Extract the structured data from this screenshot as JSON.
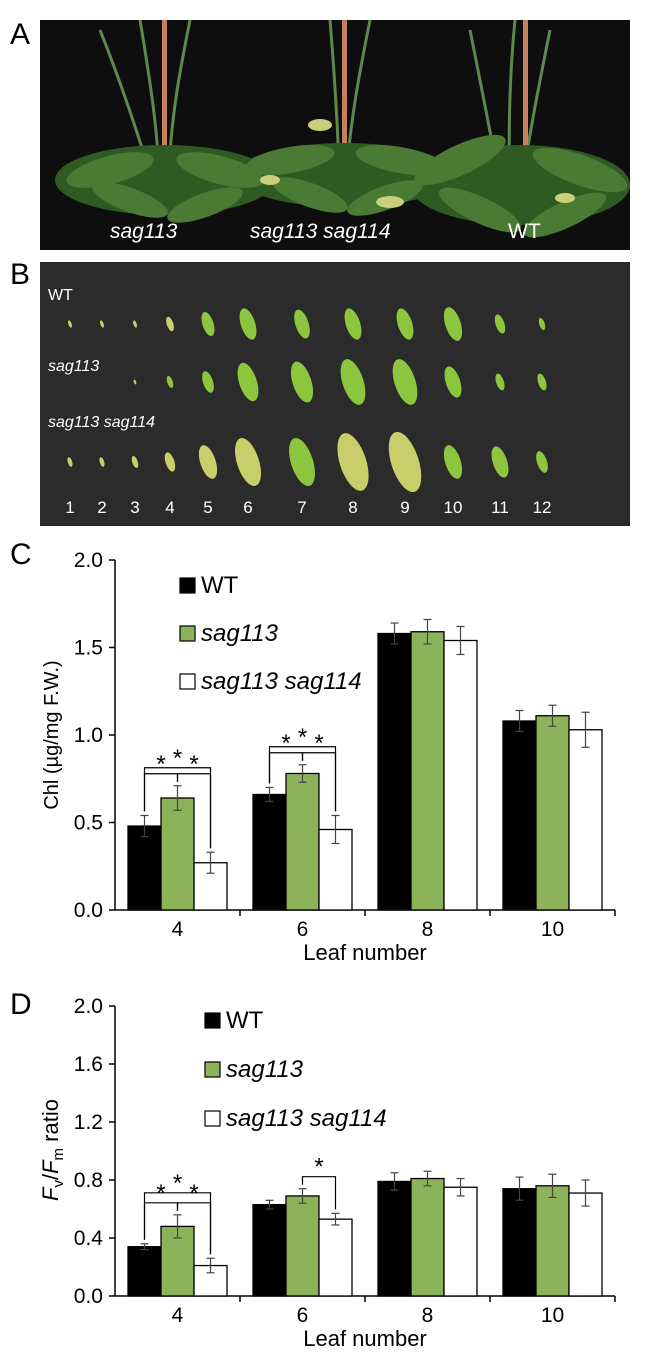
{
  "panels": {
    "A": {
      "letter": "A",
      "labels": [
        "sag113",
        "sag113 sag114",
        "WT"
      ]
    },
    "B": {
      "letter": "B",
      "row_labels": [
        "WT",
        "sag113",
        "sag113 sag114"
      ],
      "leaf_numbers": [
        "1",
        "2",
        "3",
        "4",
        "5",
        "6",
        "7",
        "8",
        "9",
        "10",
        "11",
        "12"
      ]
    },
    "C": {
      "letter": "C"
    },
    "D": {
      "letter": "D"
    }
  },
  "colors": {
    "wt": "#000000",
    "sag113": "#8db35a",
    "double": "#ffffff",
    "leaf_green": "#8cc63f",
    "leaf_yellow": "#c8cf6a"
  },
  "chart_data": [
    {
      "type": "bar",
      "panel": "C",
      "ylabel": "Chl (µg/mg F.W.)",
      "xlabel": "Leaf number",
      "categories": [
        "4",
        "6",
        "8",
        "10"
      ],
      "ylim": [
        0,
        2.0
      ],
      "yticks": [
        "0.0",
        "0.5",
        "1.0",
        "1.5",
        "2.0"
      ],
      "legend_position": "top-left",
      "series": [
        {
          "name": "WT",
          "values": [
            0.48,
            0.66,
            1.58,
            1.08
          ],
          "errors": [
            0.06,
            0.04,
            0.06,
            0.06
          ]
        },
        {
          "name": "sag113",
          "values": [
            0.64,
            0.78,
            1.59,
            1.11
          ],
          "errors": [
            0.07,
            0.05,
            0.07,
            0.06
          ]
        },
        {
          "name": "sag113 sag114",
          "values": [
            0.27,
            0.46,
            1.54,
            1.03
          ],
          "errors": [
            0.06,
            0.08,
            0.08,
            0.1
          ]
        }
      ],
      "significance": [
        {
          "category": 0,
          "pair": [
            0,
            1
          ],
          "label": "*"
        },
        {
          "category": 0,
          "pair": [
            1,
            2
          ],
          "label": "*"
        },
        {
          "category": 0,
          "pair": [
            0,
            2
          ],
          "label": "*"
        },
        {
          "category": 1,
          "pair": [
            0,
            1
          ],
          "label": "*"
        },
        {
          "category": 1,
          "pair": [
            1,
            2
          ],
          "label": "*"
        },
        {
          "category": 1,
          "pair": [
            0,
            2
          ],
          "label": "*"
        }
      ]
    },
    {
      "type": "bar",
      "panel": "D",
      "ylabel_parts": [
        "F",
        "v",
        "/",
        "F",
        "m",
        " ratio"
      ],
      "xlabel": "Leaf number",
      "categories": [
        "4",
        "6",
        "8",
        "10"
      ],
      "ylim": [
        0,
        2.0
      ],
      "yticks": [
        "0.0",
        "0.4",
        "0.8",
        "1.2",
        "1.6",
        "2.0"
      ],
      "legend_position": "top-center",
      "series": [
        {
          "name": "WT",
          "values": [
            0.34,
            0.63,
            0.79,
            0.74
          ],
          "errors": [
            0.02,
            0.03,
            0.06,
            0.08
          ]
        },
        {
          "name": "sag113",
          "values": [
            0.48,
            0.69,
            0.81,
            0.76
          ],
          "errors": [
            0.08,
            0.05,
            0.05,
            0.08
          ]
        },
        {
          "name": "sag113 sag114",
          "values": [
            0.21,
            0.53,
            0.75,
            0.71
          ],
          "errors": [
            0.05,
            0.04,
            0.06,
            0.09
          ]
        }
      ],
      "significance": [
        {
          "category": 0,
          "pair": [
            0,
            1
          ],
          "label": "*"
        },
        {
          "category": 0,
          "pair": [
            1,
            2
          ],
          "label": "*"
        },
        {
          "category": 0,
          "pair": [
            0,
            2
          ],
          "label": "*"
        },
        {
          "category": 1,
          "pair": [
            1,
            2
          ],
          "label": "*"
        }
      ]
    }
  ]
}
